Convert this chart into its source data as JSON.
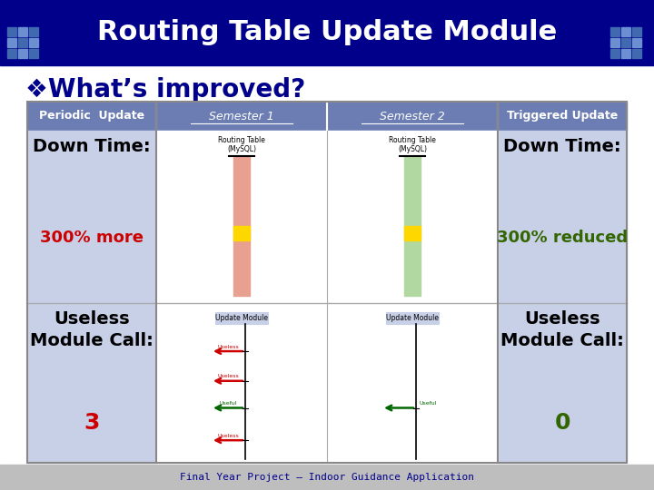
{
  "title": "Routing Table Update Module",
  "title_bg": "#00008B",
  "title_fg": "#FFFFFF",
  "subtitle": "❖What’s improved?",
  "subtitle_fg": "#00008B",
  "header_bg": "#6B7DB3",
  "header_fg": "#FFFFFF",
  "col_headers": [
    "Periodic  Update",
    "Semester 1",
    "Semester 2",
    "Triggered Update"
  ],
  "col_header_italic": [
    false,
    true,
    true,
    false
  ],
  "col_header_underline": [
    false,
    true,
    true,
    false
  ],
  "row1_left_title": "Down Time:",
  "row1_right_title": "Down Time:",
  "row1_left_val": "300% more",
  "row1_left_val_color": "#CC0000",
  "row1_right_val": "300% reduced",
  "row1_right_val_color": "#336600",
  "row2_left_title": "Useless\nModule Call:",
  "row2_right_title": "Useless\nModule Call:",
  "row2_left_val": "3",
  "row2_left_val_color": "#CC0000",
  "row2_right_val": "0",
  "row2_right_val_color": "#336600",
  "cell_bg_left": "#C8D0E8",
  "cell_bg_mid": "#FFFFFF",
  "cell_bg_right": "#C8D0E8",
  "footer_text": "Final Year Project — Indoor Guidance Application",
  "footer_bg": "#BEBEBE",
  "footer_fg": "#00008B",
  "tile_color1": "#4169B0",
  "tile_color2": "#6B8FD0",
  "bg_color": "#FFFFFF",
  "bar1_color": "#E8A090",
  "bar2_color": "#B0D8A0",
  "yellow_color": "#FFD700",
  "arrow_useless_color": "#CC0000",
  "arrow_useful_color": "#006600"
}
